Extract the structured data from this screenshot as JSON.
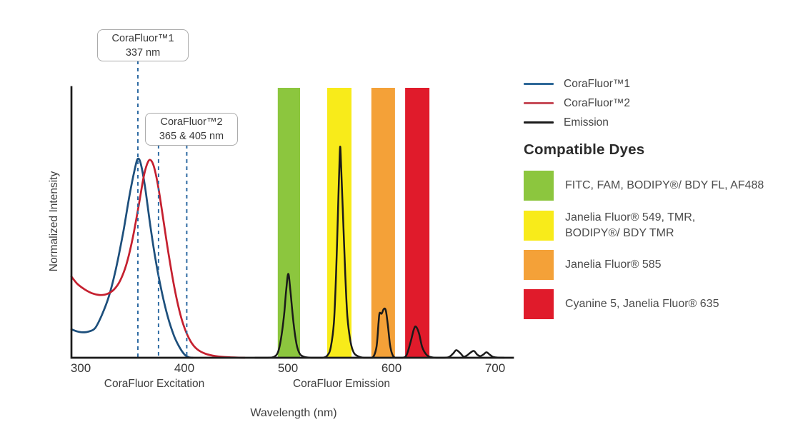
{
  "chart_data": {
    "type": "line",
    "xlabel": "Wavelength (nm)",
    "ylabel": "Normalized Intensity",
    "x_ticks": [
      300,
      400,
      500,
      600,
      700
    ],
    "x_range_nm": [
      291,
      716
    ],
    "ylim": [
      0,
      1
    ],
    "grid": false,
    "axis_color": "#1a1a1a",
    "region_labels": [
      {
        "text": "CoraFluor Excitation"
      },
      {
        "text": "CoraFluor Emission"
      }
    ],
    "series": [
      {
        "name": "CoraFluor™1",
        "role": "excitation",
        "color": "#1d4f7c",
        "width": 2.7,
        "points": [
          [
            291,
            0.105
          ],
          [
            296,
            0.098
          ],
          [
            302,
            0.094
          ],
          [
            308,
            0.097
          ],
          [
            314,
            0.11
          ],
          [
            320,
            0.155
          ],
          [
            327,
            0.225
          ],
          [
            334,
            0.33
          ],
          [
            341,
            0.465
          ],
          [
            347,
            0.6
          ],
          [
            352,
            0.695
          ],
          [
            355,
            0.735
          ],
          [
            358,
            0.715
          ],
          [
            362,
            0.63
          ],
          [
            367,
            0.49
          ],
          [
            372,
            0.365
          ],
          [
            378,
            0.245
          ],
          [
            384,
            0.15
          ],
          [
            390,
            0.08
          ],
          [
            395,
            0.04
          ],
          [
            400,
            0.012
          ],
          [
            404,
            0.002
          ],
          [
            408,
            0
          ]
        ]
      },
      {
        "name": "CoraFluor™2",
        "role": "excitation",
        "color": "#c5202f",
        "width": 2.7,
        "points": [
          [
            291,
            0.3
          ],
          [
            297,
            0.272
          ],
          [
            304,
            0.252
          ],
          [
            311,
            0.238
          ],
          [
            318,
            0.232
          ],
          [
            325,
            0.235
          ],
          [
            332,
            0.252
          ],
          [
            338,
            0.285
          ],
          [
            344,
            0.345
          ],
          [
            350,
            0.44
          ],
          [
            356,
            0.565
          ],
          [
            361,
            0.675
          ],
          [
            365,
            0.725
          ],
          [
            368,
            0.728
          ],
          [
            371,
            0.7
          ],
          [
            375,
            0.625
          ],
          [
            380,
            0.5
          ],
          [
            385,
            0.375
          ],
          [
            390,
            0.265
          ],
          [
            395,
            0.175
          ],
          [
            400,
            0.11
          ],
          [
            406,
            0.06
          ],
          [
            412,
            0.032
          ],
          [
            420,
            0.015
          ],
          [
            430,
            0.006
          ],
          [
            442,
            0.002
          ],
          [
            458,
            0
          ]
        ]
      },
      {
        "name": "Emission",
        "role": "emission",
        "color": "#1a1a1a",
        "width": 2.5,
        "points": [
          [
            468,
            0
          ],
          [
            480,
            0
          ],
          [
            486,
            0.003
          ],
          [
            490,
            0.02
          ],
          [
            493,
            0.07
          ],
          [
            496,
            0.16
          ],
          [
            498,
            0.25
          ],
          [
            500,
            0.31
          ],
          [
            502,
            0.25
          ],
          [
            505,
            0.13
          ],
          [
            508,
            0.05
          ],
          [
            511,
            0.015
          ],
          [
            515,
            0.004
          ],
          [
            522,
            0
          ],
          [
            533,
            0
          ],
          [
            538,
            0.01
          ],
          [
            541,
            0.04
          ],
          [
            544,
            0.13
          ],
          [
            546,
            0.3
          ],
          [
            548,
            0.55
          ],
          [
            549,
            0.68
          ],
          [
            550,
            0.78
          ],
          [
            551,
            0.7
          ],
          [
            553,
            0.5
          ],
          [
            555,
            0.3
          ],
          [
            557,
            0.15
          ],
          [
            560,
            0.06
          ],
          [
            563,
            0.02
          ],
          [
            567,
            0.006
          ],
          [
            573,
            0
          ],
          [
            581,
            0
          ],
          [
            585,
            0.04
          ],
          [
            587,
            0.13
          ],
          [
            588,
            0.165
          ],
          [
            590,
            0.163
          ],
          [
            592,
            0.18
          ],
          [
            594,
            0.175
          ],
          [
            596,
            0.12
          ],
          [
            598,
            0.05
          ],
          [
            600,
            0.015
          ],
          [
            603,
            0
          ],
          [
            610,
            0
          ],
          [
            614,
            0.01
          ],
          [
            618,
            0.06
          ],
          [
            621,
            0.105
          ],
          [
            623,
            0.115
          ],
          [
            626,
            0.09
          ],
          [
            629,
            0.04
          ],
          [
            633,
            0.012
          ],
          [
            637,
            0.003
          ],
          [
            643,
            0
          ],
          [
            650,
            0
          ],
          [
            655,
            0.003
          ],
          [
            659,
            0.016
          ],
          [
            662,
            0.028
          ],
          [
            666,
            0.016
          ],
          [
            669,
            0.004
          ],
          [
            672,
            0.008
          ],
          [
            676,
            0.02
          ],
          [
            679,
            0.025
          ],
          [
            682,
            0.012
          ],
          [
            685,
            0.006
          ],
          [
            688,
            0.012
          ],
          [
            691,
            0.02
          ],
          [
            694,
            0.012
          ],
          [
            697,
            0.004
          ],
          [
            701,
            0.001
          ],
          [
            708,
            0
          ]
        ]
      }
    ],
    "filter_bands": [
      {
        "name": "band-fitc-fam",
        "color": "#8cc63e",
        "nm": [
          489.9,
          511.4
        ]
      },
      {
        "name": "band-jf549-tmr",
        "color": "#f8eb1a",
        "nm": [
          537.5,
          560.9
        ]
      },
      {
        "name": "band-jf585",
        "color": "#f4a138",
        "nm": [
          580.1,
          602.9
        ]
      },
      {
        "name": "band-cy5-jf635",
        "color": "#e01b2b",
        "nm": [
          612.6,
          636.0
        ]
      }
    ],
    "excitation_markers": {
      "color": "#2f6ba3",
      "lines": [
        {
          "label_nm": 337,
          "draw_nm": 355.1,
          "top_y": 85
        },
        {
          "label_nm": 365,
          "draw_nm": 375.0,
          "top_y": 203
        },
        {
          "label_nm": 405,
          "draw_nm": 402.2,
          "top_y": 203
        }
      ]
    },
    "annotations": [
      {
        "line1": "CoraFluor™1",
        "line2": "337 nm"
      },
      {
        "line1": "CoraFluor™2",
        "line2": "365 & 405 nm"
      }
    ]
  },
  "legend": {
    "items": [
      {
        "label": "CoraFluor™1",
        "color": "#2e6898"
      },
      {
        "label": "CoraFluor™2",
        "color": "#c64b58"
      },
      {
        "label": "Emission",
        "color": "#1a1a1a"
      }
    ]
  },
  "dye_panel": {
    "heading": "Compatible Dyes",
    "items": [
      {
        "color": "#8cc63e",
        "line1": "FITC, FAM, BODIPY®/ BDY FL, AF488",
        "line2": ""
      },
      {
        "color": "#f8eb1a",
        "line1": "Janelia Fluor® 549, TMR,",
        "line2": "BODIPY®/ BDY TMR"
      },
      {
        "color": "#f4a138",
        "line1": "Janelia Fluor® 585",
        "line2": ""
      },
      {
        "color": "#e01b2b",
        "line1": "Cyanine 5, Janelia Fluor® 635",
        "line2": ""
      }
    ]
  }
}
